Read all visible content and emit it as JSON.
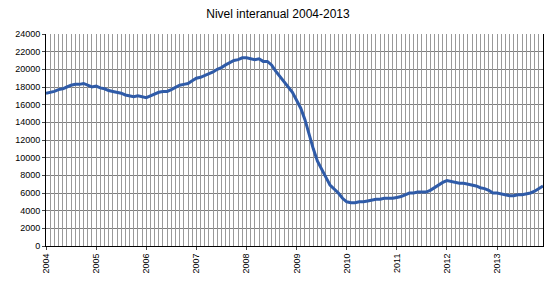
{
  "chart_data": {
    "type": "line",
    "title": "Nivel interanual 2004-2013",
    "categories": [
      "2004",
      null,
      null,
      null,
      null,
      null,
      null,
      null,
      null,
      null,
      null,
      null,
      "2005",
      null,
      null,
      null,
      null,
      null,
      null,
      null,
      null,
      null,
      null,
      null,
      "2006",
      null,
      null,
      null,
      null,
      null,
      null,
      null,
      null,
      null,
      null,
      null,
      "2007",
      null,
      null,
      null,
      null,
      null,
      null,
      null,
      null,
      null,
      null,
      null,
      "2008",
      null,
      null,
      null,
      null,
      null,
      null,
      null,
      null,
      null,
      null,
      null,
      "2009",
      null,
      null,
      null,
      null,
      null,
      null,
      null,
      null,
      null,
      null,
      null,
      "2010",
      null,
      null,
      null,
      null,
      null,
      null,
      null,
      null,
      null,
      null,
      null,
      "2011",
      null,
      null,
      null,
      null,
      null,
      null,
      null,
      null,
      null,
      null,
      null,
      "2012",
      null,
      null,
      null,
      null,
      null,
      null,
      null,
      null,
      null,
      null,
      null,
      "2013",
      null,
      null,
      null,
      null,
      null,
      null,
      null,
      null,
      null,
      null,
      null
    ],
    "values": [
      17300,
      17400,
      17500,
      17700,
      17800,
      18000,
      18200,
      18300,
      18300,
      18400,
      18200,
      18000,
      18100,
      17900,
      17800,
      17600,
      17500,
      17400,
      17300,
      17100,
      17000,
      16900,
      17000,
      16900,
      16800,
      17000,
      17200,
      17400,
      17500,
      17500,
      17700,
      18000,
      18200,
      18300,
      18400,
      18700,
      19000,
      19100,
      19300,
      19500,
      19700,
      20000,
      20200,
      20500,
      20800,
      21000,
      21100,
      21300,
      21300,
      21200,
      21100,
      21200,
      20900,
      20900,
      20500,
      19800,
      19200,
      18600,
      18000,
      17400,
      16500,
      15600,
      14300,
      12600,
      11000,
      9600,
      8600,
      7800,
      6900,
      6500,
      6000,
      5400,
      5000,
      4900,
      4900,
      5000,
      5000,
      5100,
      5200,
      5300,
      5300,
      5400,
      5400,
      5400,
      5500,
      5600,
      5800,
      6000,
      6000,
      6100,
      6100,
      6100,
      6300,
      6600,
      6900,
      7200,
      7400,
      7300,
      7200,
      7100,
      7100,
      7000,
      6900,
      6800,
      6600,
      6500,
      6300,
      6000,
      6000,
      5900,
      5800,
      5700,
      5700,
      5800,
      5800,
      5900,
      6000,
      6200,
      6500,
      6800
    ],
    "color": "#2f5ba8",
    "ylim": [
      0,
      24000
    ],
    "yticks": [
      0,
      2000,
      4000,
      6000,
      8000,
      10000,
      12000,
      14000,
      16000,
      18000,
      20000,
      22000,
      24000
    ],
    "grid": true
  }
}
